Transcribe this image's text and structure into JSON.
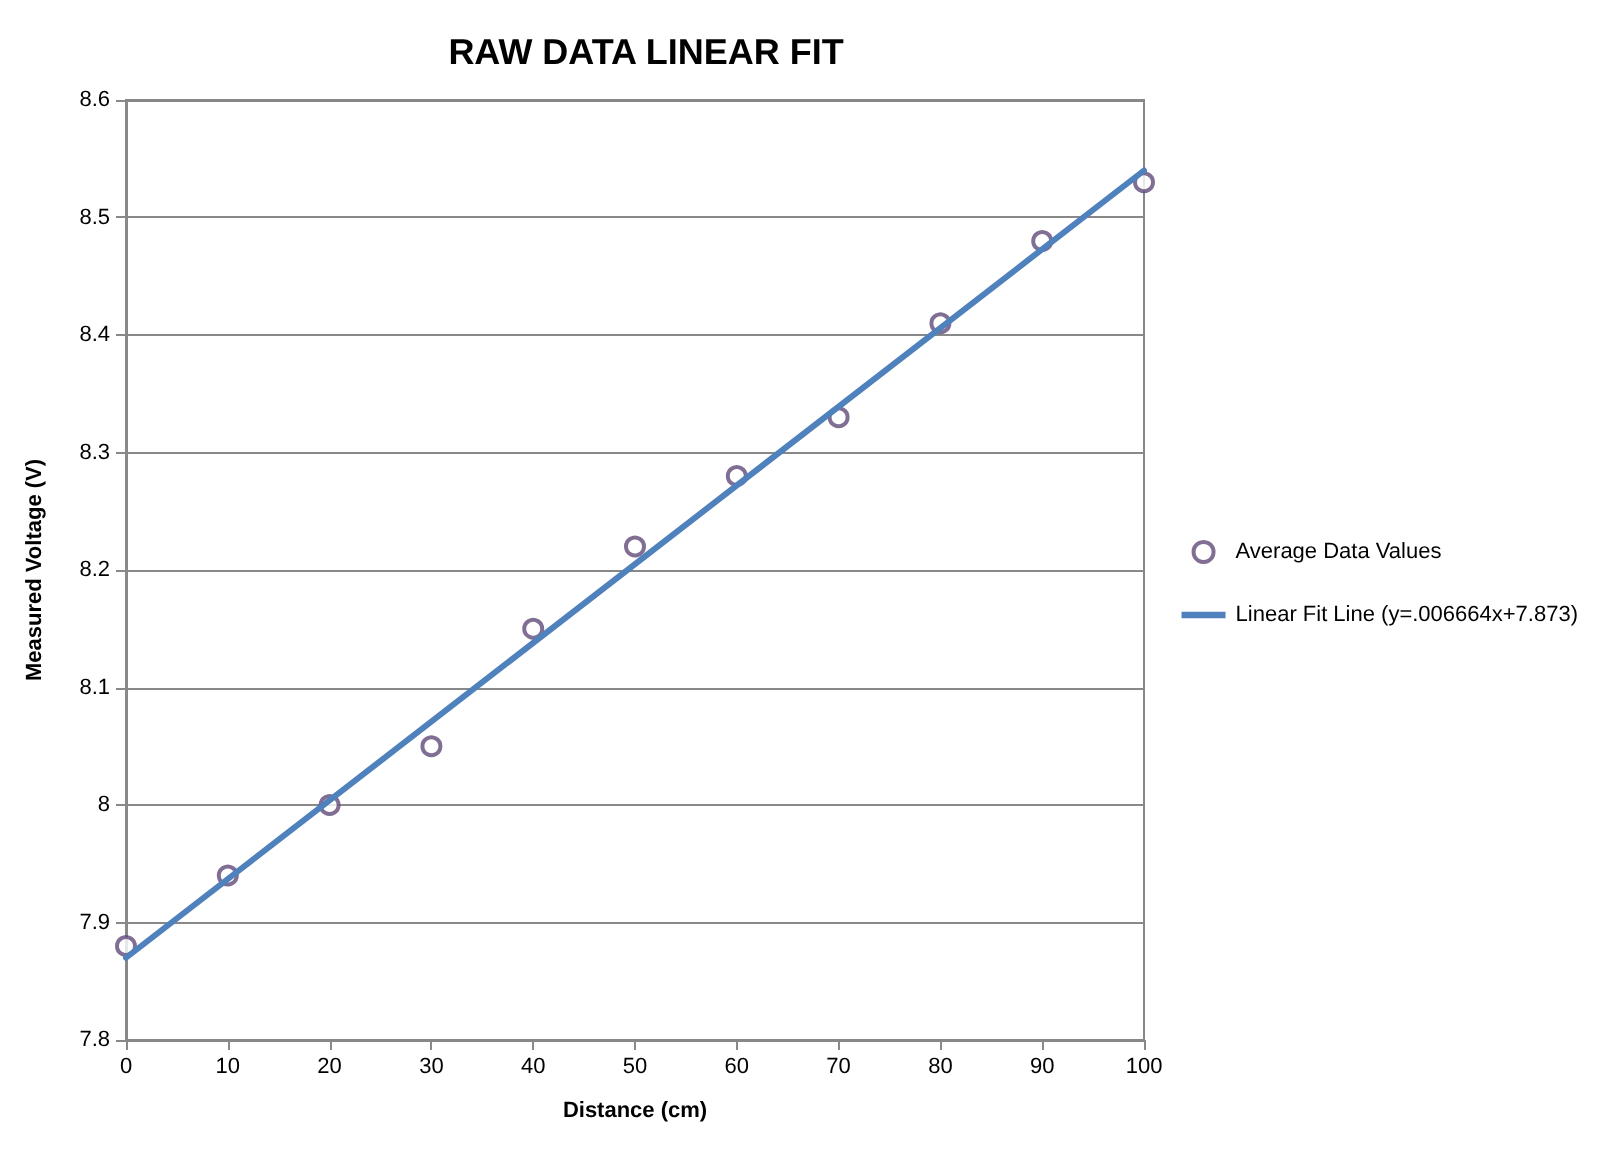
{
  "chart_data": {
    "type": "scatter",
    "title": "RAW DATA LINEAR FIT",
    "xlabel": "Distance (cm)",
    "ylabel": "Measured Voltage (V)",
    "x": [
      0,
      10,
      20,
      30,
      40,
      50,
      60,
      70,
      80,
      90,
      100
    ],
    "series": [
      {
        "name": "Average Data Values",
        "color": "#604a7b",
        "marker": "circle",
        "values": [
          7.88,
          7.94,
          8.0,
          8.05,
          8.15,
          8.22,
          8.28,
          8.33,
          8.41,
          8.48,
          8.53
        ]
      },
      {
        "name": "Linear Fit Line (y=.006664x+7.873)",
        "type": "line",
        "color": "#4f81bd",
        "marker": "none",
        "line_style": "solid",
        "x": [
          0,
          100
        ],
        "values": [
          7.87,
          8.54
        ]
      }
    ],
    "xlim": [
      0,
      100
    ],
    "xticks": [
      0,
      10,
      20,
      30,
      40,
      50,
      60,
      70,
      80,
      90,
      100
    ],
    "ylim": [
      7.8,
      8.6
    ],
    "yticks": [
      7.8,
      7.9,
      8,
      8.1,
      8.2,
      8.3,
      8.4,
      8.5,
      8.6
    ],
    "grid": "y",
    "legend": "right"
  }
}
